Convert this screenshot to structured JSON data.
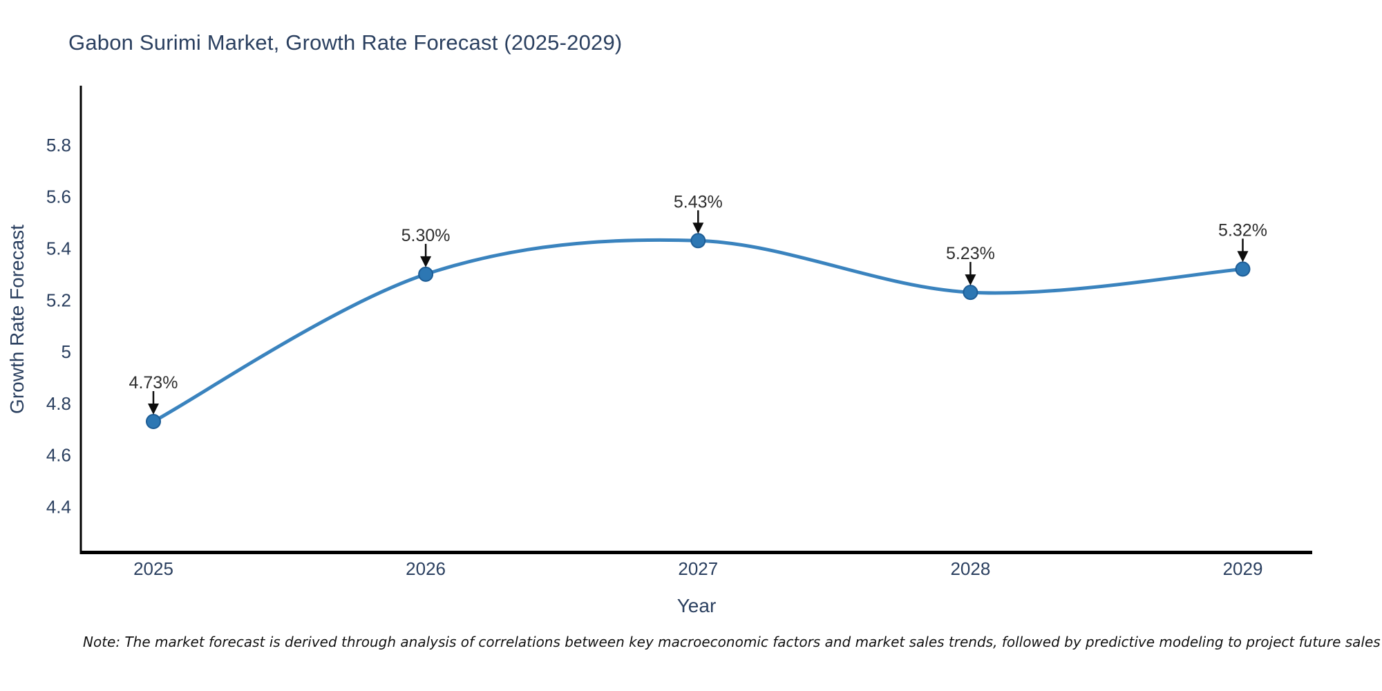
{
  "page": {
    "background_color": "#ffffff"
  },
  "chart_data": {
    "type": "line",
    "title": "Gabon Surimi Market, Growth Rate Forecast (2025-2029)",
    "xlabel": "Year",
    "ylabel": "Growth Rate Forecast",
    "categories": [
      "2025",
      "2026",
      "2027",
      "2028",
      "2029"
    ],
    "series": [
      {
        "name": "Growth Rate Forecast",
        "values": [
          4.73,
          5.3,
          5.43,
          5.23,
          5.32
        ],
        "point_labels": [
          "4.73%",
          "5.30%",
          "5.43%",
          "5.23%",
          "5.32%"
        ]
      }
    ],
    "line_shape": "spline",
    "markers_visible": true,
    "annotation_arrows": true,
    "ytick_labels": [
      "4.4",
      "4.6",
      "4.8",
      "5",
      "5.2",
      "5.4",
      "5.6",
      "5.8"
    ],
    "ytick_values": [
      4.4,
      4.6,
      4.8,
      5.0,
      5.2,
      5.4,
      5.6,
      5.8
    ],
    "y_range": [
      4.223,
      6.03
    ],
    "grid": false,
    "legend_position": "none",
    "colors": {
      "line": "#3a83be",
      "marker_fill": "#2d77b3",
      "marker_edge": "#1d5d96",
      "axis_line": "#000000",
      "tick_text": "#2a3f5f",
      "point_label_text": "#2e2e2e",
      "arrow": "#0d0d0d",
      "title_text": "#2a3f5f",
      "note_text": "#111111"
    },
    "note": "Note: The market forecast is derived through analysis of correlations between key macroeconomic factors and market sales trends, followed by predictive modeling to project future sales"
  }
}
